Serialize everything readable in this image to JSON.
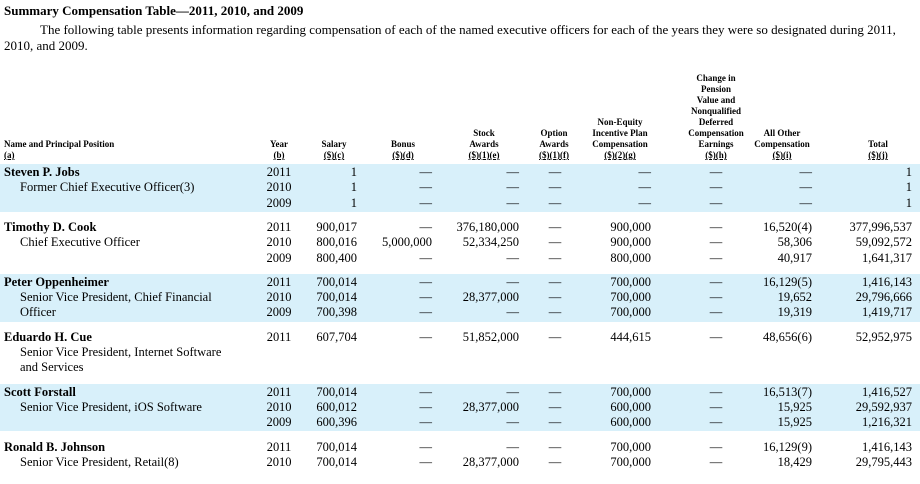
{
  "title": "Summary Compensation Table—2011, 2010, and 2009",
  "paragraph_lines": [
    "The following table presents information regarding compensation of each of the named executive officers for each of the years they were so designated during 2011,",
    "2010, and 2009."
  ],
  "headers": [
    {
      "lines": [
        "Name and Principal Position"
      ],
      "code": "(a)"
    },
    {
      "lines": [
        "Year"
      ],
      "code": "(b)"
    },
    {
      "lines": [
        "Salary"
      ],
      "code": "($)(c)"
    },
    {
      "lines": [
        "Bonus"
      ],
      "code": "($)(d)"
    },
    {
      "lines": [
        "Stock",
        "Awards"
      ],
      "code": "($)(1)(e)"
    },
    {
      "lines": [
        "Option",
        "Awards"
      ],
      "code": "($)(1)(f)"
    },
    {
      "lines": [
        "Non-Equity",
        "Incentive Plan",
        "Compensation"
      ],
      "code": "($)(2)(g)"
    },
    {
      "lines": [
        "Change in",
        "Pension",
        "Value and",
        "Nonqualified",
        "Deferred",
        "Compensation",
        "Earnings"
      ],
      "code": "($)(h)"
    },
    {
      "lines": [
        "All Other",
        "Compensation"
      ],
      "code": "($)(i)"
    },
    {
      "lines": [
        "Total"
      ],
      "code": "($)(j)"
    }
  ],
  "executives": [
    {
      "name": "Steven P. Jobs",
      "title_lines": [
        "Former Chief Executive Officer(3)"
      ],
      "rows": [
        [
          "2011",
          "1",
          "—",
          "—",
          "—",
          "—",
          "—",
          "—",
          "1"
        ],
        [
          "2010",
          "1",
          "—",
          "—",
          "—",
          "—",
          "—",
          "—",
          "1"
        ],
        [
          "2009",
          "1",
          "—",
          "—",
          "—",
          "—",
          "—",
          "—",
          "1"
        ]
      ]
    },
    {
      "name": "Timothy D. Cook",
      "title_lines": [
        "Chief Executive Officer"
      ],
      "rows": [
        [
          "2011",
          "900,017",
          "—",
          "376,180,000",
          "—",
          "900,000",
          "—",
          "16,520(4)",
          "377,996,537"
        ],
        [
          "2010",
          "800,016",
          "5,000,000",
          "52,334,250",
          "—",
          "900,000",
          "—",
          "58,306",
          "59,092,572"
        ],
        [
          "2009",
          "800,400",
          "—",
          "—",
          "—",
          "800,000",
          "—",
          "40,917",
          "1,641,317"
        ]
      ]
    },
    {
      "name": "Peter Oppenheimer",
      "title_lines": [
        "Senior Vice President, Chief Financial",
        "Officer"
      ],
      "rows": [
        [
          "2011",
          "700,014",
          "—",
          "—",
          "—",
          "700,000",
          "—",
          "16,129(5)",
          "1,416,143"
        ],
        [
          "2010",
          "700,014",
          "—",
          "28,377,000",
          "—",
          "700,000",
          "—",
          "19,652",
          "29,796,666"
        ],
        [
          "2009",
          "700,398",
          "—",
          "—",
          "—",
          "700,000",
          "—",
          "19,319",
          "1,419,717"
        ]
      ]
    },
    {
      "name": "Eduardo H. Cue",
      "title_lines": [
        "Senior Vice President, Internet Software",
        "and Services"
      ],
      "rows": [
        [
          "2011",
          "607,704",
          "—",
          "51,852,000",
          "—",
          "444,615",
          "—",
          "48,656(6)",
          "52,952,975"
        ]
      ]
    },
    {
      "name": "Scott Forstall",
      "title_lines": [
        "Senior Vice President, iOS Software"
      ],
      "rows": [
        [
          "2011",
          "700,014",
          "—",
          "—",
          "—",
          "700,000",
          "—",
          "16,513(7)",
          "1,416,527"
        ],
        [
          "2010",
          "600,012",
          "—",
          "28,377,000",
          "—",
          "600,000",
          "—",
          "15,925",
          "29,592,937"
        ],
        [
          "2009",
          "600,396",
          "—",
          "—",
          "—",
          "600,000",
          "—",
          "15,925",
          "1,216,321"
        ]
      ]
    },
    {
      "name": "Ronald B. Johnson",
      "title_lines": [
        "Senior Vice President, Retail(8)"
      ],
      "rows": [
        [
          "2011",
          "700,014",
          "—",
          "—",
          "—",
          "700,000",
          "—",
          "16,129(9)",
          "1,416,143"
        ],
        [
          "2010",
          "700,014",
          "—",
          "28,377,000",
          "—",
          "700,000",
          "—",
          "18,429",
          "29,795,443"
        ]
      ]
    }
  ]
}
